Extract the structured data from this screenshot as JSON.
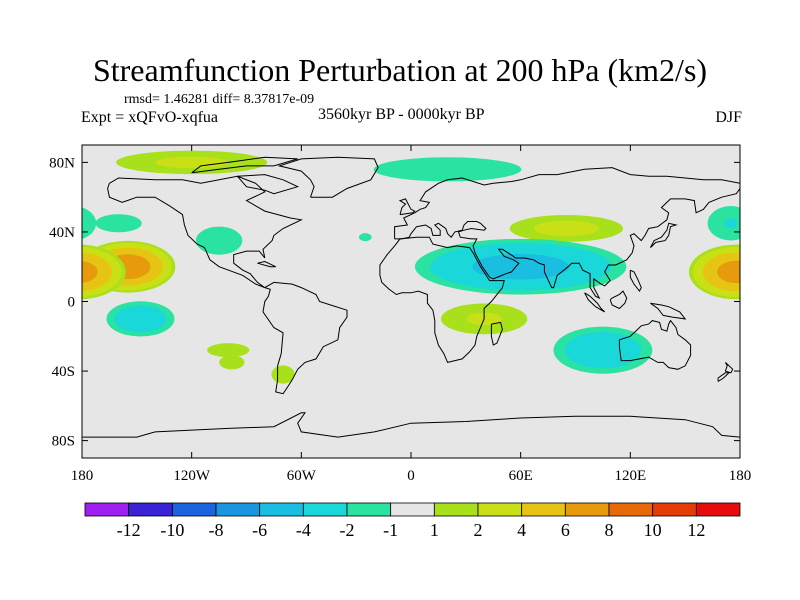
{
  "header": {
    "title": "Streamfunction Perturbation at 200 hPa (km2/s)",
    "stats": "rmsd= 1.46281 diff= 8.37817e-09",
    "experiment": "Expt = xQFvO-xqfua",
    "period": "3560kyr BP - 0000kyr BP",
    "season": "DJF"
  },
  "chart_data": {
    "type": "heatmap",
    "title": "Streamfunction Perturbation at 200 hPa (km2/s)",
    "xlabel": "",
    "ylabel": "",
    "xlim": [
      -180,
      180
    ],
    "ylim": [
      -90,
      90
    ],
    "x_ticks": [
      {
        "value": -180,
        "label": "180"
      },
      {
        "value": -120,
        "label": "120W"
      },
      {
        "value": -60,
        "label": "60W"
      },
      {
        "value": 0,
        "label": "0"
      },
      {
        "value": 60,
        "label": "60E"
      },
      {
        "value": 120,
        "label": "120E"
      },
      {
        "value": 180,
        "label": "180"
      }
    ],
    "y_ticks": [
      {
        "value": 80,
        "label": "80N"
      },
      {
        "value": 40,
        "label": "40N"
      },
      {
        "value": 0,
        "label": "0"
      },
      {
        "value": -40,
        "label": "40S"
      },
      {
        "value": -80,
        "label": "80S"
      }
    ],
    "background_color": "#e6e6e6",
    "colorbar": {
      "boundary_labels": [
        "-12",
        "-10",
        "-8",
        "-6",
        "-4",
        "-2",
        "-1",
        "1",
        "2",
        "4",
        "6",
        "8",
        "10",
        "12"
      ],
      "colors": [
        "#a020f0",
        "#3a22d6",
        "#1c63e0",
        "#1a96e0",
        "#19bee0",
        "#1ad8da",
        "#2ae3a0",
        "#e6e6e6",
        "#a8e01c",
        "#cae016",
        "#e6c414",
        "#e69a0c",
        "#e66a08",
        "#e43c06",
        "#e60c0c"
      ]
    },
    "anomalies": [
      {
        "lon": -155,
        "lat": 20,
        "value": 7.5,
        "rx": 28,
        "ry": 16
      },
      {
        "lon": -160,
        "lat": 45,
        "value": -1.5,
        "rx": 22,
        "ry": 9
      },
      {
        "lon": -148,
        "lat": -10,
        "value": -3.5,
        "rx": 22,
        "ry": 12
      },
      {
        "lon": -120,
        "lat": 80,
        "value": 2.3,
        "rx": 55,
        "ry": 9
      },
      {
        "lon": -105,
        "lat": 35,
        "value": -1.5,
        "rx": 22,
        "ry": 14
      },
      {
        "lon": -100,
        "lat": -28,
        "value": 1.5,
        "rx": 20,
        "ry": 7
      },
      {
        "lon": -98,
        "lat": -35,
        "value": 1.5,
        "rx": 12,
        "ry": 7
      },
      {
        "lon": -70,
        "lat": -42,
        "value": 1.5,
        "rx": 11,
        "ry": 9
      },
      {
        "lon": -25,
        "lat": 37,
        "value": -1.5,
        "rx": 6,
        "ry": 4
      },
      {
        "lon": 20,
        "lat": 76,
        "value": -1.5,
        "rx": 70,
        "ry": 12
      },
      {
        "lon": 85,
        "lat": 42,
        "value": 2.5,
        "rx": 40,
        "ry": 10
      },
      {
        "lon": 60,
        "lat": 20,
        "value": -4.8,
        "rx": 65,
        "ry": 18
      },
      {
        "lon": 40,
        "lat": -10,
        "value": 2.2,
        "rx": 32,
        "ry": 12
      },
      {
        "lon": 105,
        "lat": -28,
        "value": -3.5,
        "rx": 32,
        "ry": 16
      },
      {
        "lon": 175,
        "lat": 45,
        "value": -2.0,
        "rx": 18,
        "ry": 14
      },
      {
        "lon": 178,
        "lat": 17,
        "value": 7.0,
        "rx": 28,
        "ry": 17
      }
    ]
  }
}
